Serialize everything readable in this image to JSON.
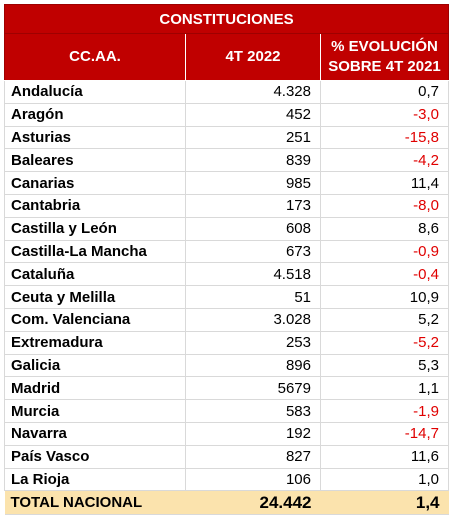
{
  "table": {
    "title": "CONSTITUCIONES",
    "columns": [
      "CC.AA.",
      "4T 2022",
      "% EVOLUCIÓN",
      "SOBRE 4T 2021"
    ],
    "negative_color": "#e00000",
    "header_color": "#c00000",
    "total_bg_color": "#fbe3ad",
    "rows": [
      {
        "region": "Andalucía",
        "value": "4.328",
        "change": "0,7",
        "negative": false
      },
      {
        "region": "Aragón",
        "value": "452",
        "change": "-3,0",
        "negative": true
      },
      {
        "region": "Asturias",
        "value": "251",
        "change": "-15,8",
        "negative": true
      },
      {
        "region": "Baleares",
        "value": "839",
        "change": "-4,2",
        "negative": true
      },
      {
        "region": "Canarias",
        "value": "985",
        "change": "11,4",
        "negative": false
      },
      {
        "region": "Cantabria",
        "value": "173",
        "change": "-8,0",
        "negative": true
      },
      {
        "region": "Castilla y León",
        "value": "608",
        "change": "8,6",
        "negative": false
      },
      {
        "region": "Castilla-La Mancha",
        "value": "673",
        "change": "-0,9",
        "negative": true
      },
      {
        "region": "Cataluña",
        "value": "4.518",
        "change": "-0,4",
        "negative": true
      },
      {
        "region": "Ceuta y Melilla",
        "value": "51",
        "change": "10,9",
        "negative": false
      },
      {
        "region": "Com. Valenciana",
        "value": "3.028",
        "change": "5,2",
        "negative": false
      },
      {
        "region": "Extremadura",
        "value": "253",
        "change": "-5,2",
        "negative": true
      },
      {
        "region": "Galicia",
        "value": "896",
        "change": "5,3",
        "negative": false
      },
      {
        "region": "Madrid",
        "value": "5679",
        "change": "1,1",
        "negative": false
      },
      {
        "region": "Murcia",
        "value": "583",
        "change": "-1,9",
        "negative": true
      },
      {
        "region": "Navarra",
        "value": "192",
        "change": "-14,7",
        "negative": true
      },
      {
        "region": "País Vasco",
        "value": "827",
        "change": "11,6",
        "negative": false
      },
      {
        "region": "La Rioja",
        "value": "106",
        "change": "1,0",
        "negative": false
      }
    ],
    "total": {
      "region": "TOTAL NACIONAL",
      "value": "24.442",
      "change": "1,4"
    }
  }
}
